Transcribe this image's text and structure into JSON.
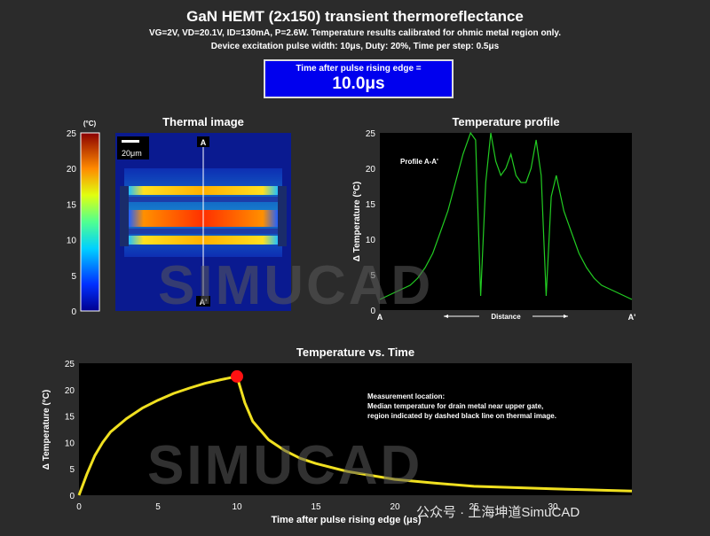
{
  "header": {
    "title": "GaN HEMT (2x150) transient thermoreflectance",
    "subtitle1": "VG=2V, VD=20.1V, ID=130mA, P=2.6W. Temperature results calibrated for ohmic metal region only.",
    "subtitle2": "Device excitation pulse width: 10μs, Duty: 20%, Time per step: 0.5μs"
  },
  "time_box": {
    "label": "Time after pulse rising edge =",
    "value": "10.0μs"
  },
  "thermal_image": {
    "title": "Thermal image",
    "colorbar_unit": "(°C)",
    "colorbar_ticks": [
      "25",
      "20",
      "15",
      "10",
      "5",
      "0"
    ],
    "scale_bar": "20μm",
    "marker_top": "A",
    "marker_bottom": "A'"
  },
  "watermark": "SIMUCAD",
  "footer_brand": "公众号 · 上海坤道SimuCAD",
  "colors": {
    "background": "#2b2b2b",
    "profile_line": "#22cc22",
    "time_line": "#f0e020",
    "marker": "#ff1111",
    "time_box": "#0000ee"
  },
  "chart_data": [
    {
      "type": "line",
      "title": "Temperature profile",
      "ylabel": "Δ Temperature (°C)",
      "xlabel": "Distance",
      "x_tick_labels": [
        "A",
        "A'"
      ],
      "annotation": "Profile A-A'",
      "ylim": [
        0,
        25
      ],
      "yticks": [
        0,
        5,
        10,
        15,
        20,
        25
      ],
      "series": [
        {
          "x": [
            0,
            0.03,
            0.06,
            0.09,
            0.12,
            0.15,
            0.18,
            0.21,
            0.24,
            0.27,
            0.3,
            0.33,
            0.36,
            0.38,
            0.4,
            0.42,
            0.44,
            0.46,
            0.48,
            0.5,
            0.52,
            0.54,
            0.56,
            0.58,
            0.6,
            0.62,
            0.64,
            0.66,
            0.68,
            0.7,
            0.73,
            0.76,
            0.79,
            0.82,
            0.85,
            0.88,
            0.91,
            0.94,
            0.97,
            1.0
          ],
          "values": [
            1.5,
            2,
            2.5,
            3,
            3.5,
            4.5,
            6,
            8,
            11,
            14,
            18,
            22,
            25,
            24,
            2,
            18,
            25,
            21,
            19,
            20,
            22,
            19,
            18,
            18,
            20,
            24,
            19,
            2,
            16,
            19,
            14,
            11,
            8,
            6,
            4.5,
            3.5,
            3,
            2.5,
            2,
            1.5
          ]
        }
      ]
    },
    {
      "type": "line",
      "title": "Temperature vs. Time",
      "xlabel": "Time after pulse rising edge (μs)",
      "ylabel": "Δ Temperature (°C)",
      "xlim": [
        0,
        35
      ],
      "ylim": [
        0,
        25
      ],
      "xticks": [
        0,
        5,
        10,
        15,
        20,
        25,
        30
      ],
      "yticks": [
        0,
        5,
        10,
        15,
        20,
        25
      ],
      "annotation": [
        "Measurement location:",
        "Median temperature for drain metal near upper gate,",
        "region indicated by dashed black line on thermal image."
      ],
      "highlight_point": {
        "x": 10,
        "y": 22.5
      },
      "series": [
        {
          "x": [
            0,
            0.5,
            1,
            1.5,
            2,
            3,
            4,
            5,
            6,
            7,
            8,
            9,
            10,
            10.5,
            11,
            12,
            13,
            14,
            15,
            17,
            20,
            22.5,
            25,
            30,
            35
          ],
          "values": [
            0,
            4,
            7.5,
            10,
            12,
            14.5,
            16.5,
            18,
            19.3,
            20.3,
            21.2,
            21.9,
            22.5,
            17.5,
            14,
            10.5,
            8.5,
            7,
            6,
            4.5,
            3,
            2.3,
            1.7,
            1.2,
            0.8
          ]
        }
      ]
    }
  ]
}
